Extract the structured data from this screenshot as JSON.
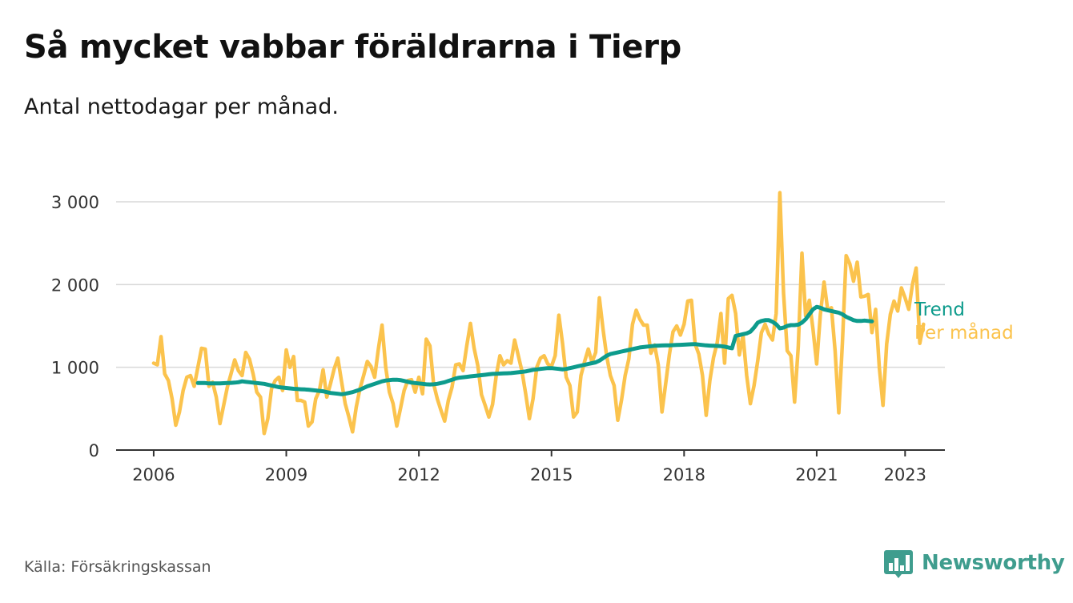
{
  "header": {
    "title": "Så mycket vabbar föräldrarna i Tierp",
    "subtitle": "Antal nettodagar per månad."
  },
  "footer": {
    "source": "Källa: Försäkringskassan",
    "brand": "Newsworthy"
  },
  "colors": {
    "trend": "#0d9b8c",
    "monthly": "#fbc34d",
    "grid": "#d9d9d9",
    "axis": "#333333",
    "brand": "#3f9d8e"
  },
  "icons": {
    "brand_logo": "bar-chart-speech-icon"
  },
  "chart_data": {
    "type": "line",
    "title": "Så mycket vabbar föräldrarna i Tierp",
    "subtitle": "Antal nettodagar per månad.",
    "xlabel": "",
    "ylabel": "",
    "xlim": [
      2005.15,
      2023.9
    ],
    "ylim": [
      0,
      3100
    ],
    "grid": true,
    "xticks": [
      2006,
      2009,
      2012,
      2015,
      2018,
      2021,
      2023
    ],
    "xtick_labels": [
      "2006",
      "2009",
      "2012",
      "2015",
      "2018",
      "2021",
      "2023"
    ],
    "yticks": [
      0,
      1000,
      2000,
      3000
    ],
    "ytick_labels": [
      "0",
      "1 000",
      "2 000",
      "3 000"
    ],
    "x_start": 2006.0,
    "x_step": 0.0833333,
    "series": [
      {
        "name": "Per månad",
        "label": "Per månad",
        "color": "#fbc34d",
        "start_index": 0,
        "values": [
          1050,
          1030,
          1370,
          920,
          840,
          620,
          300,
          460,
          720,
          880,
          900,
          770,
          1000,
          1230,
          1220,
          770,
          820,
          640,
          320,
          540,
          760,
          920,
          1090,
          960,
          900,
          1180,
          1100,
          920,
          700,
          640,
          200,
          380,
          740,
          840,
          880,
          720,
          1210,
          1000,
          1130,
          600,
          600,
          580,
          290,
          340,
          620,
          720,
          970,
          640,
          800,
          980,
          1110,
          830,
          560,
          400,
          220,
          520,
          740,
          900,
          1070,
          1010,
          880,
          1220,
          1510,
          1000,
          700,
          560,
          290,
          500,
          720,
          840,
          850,
          700,
          880,
          680,
          1340,
          1260,
          800,
          620,
          480,
          350,
          600,
          760,
          1030,
          1040,
          960,
          1260,
          1530,
          1230,
          1020,
          670,
          540,
          400,
          550,
          900,
          1140,
          1030,
          1080,
          1050,
          1330,
          1140,
          950,
          680,
          380,
          620,
          1000,
          1110,
          1140,
          1040,
          1010,
          1140,
          1630,
          1290,
          880,
          780,
          400,
          460,
          900,
          1070,
          1220,
          1060,
          1180,
          1840,
          1460,
          1130,
          900,
          780,
          360,
          600,
          900,
          1100,
          1520,
          1690,
          1580,
          1510,
          1510,
          1170,
          1270,
          1030,
          460,
          800,
          1150,
          1430,
          1500,
          1390,
          1520,
          1800,
          1810,
          1280,
          1160,
          900,
          420,
          840,
          1120,
          1300,
          1650,
          1050,
          1830,
          1870,
          1650,
          1150,
          1390,
          900,
          560,
          780,
          1080,
          1420,
          1520,
          1400,
          1330,
          1650,
          3110,
          1900,
          1200,
          1140,
          580,
          1250,
          2380,
          1620,
          1810,
          1460,
          1040,
          1640,
          2030,
          1690,
          1720,
          1200,
          450,
          1310,
          2350,
          2250,
          2040,
          2270,
          1850,
          1860,
          1880,
          1420,
          1700,
          1000,
          540,
          1280,
          1640,
          1800,
          1680,
          1960,
          1840,
          1700,
          2000,
          2200,
          1290,
          1520
        ]
      },
      {
        "name": "Trend",
        "label": "Trend",
        "color": "#0d9b8c",
        "start_index": 12,
        "values": [
          810,
          810,
          810,
          805,
          805,
          805,
          805,
          808,
          810,
          812,
          815,
          820,
          830,
          825,
          820,
          815,
          810,
          805,
          800,
          790,
          780,
          770,
          760,
          755,
          750,
          745,
          740,
          737,
          735,
          733,
          730,
          725,
          720,
          715,
          710,
          700,
          690,
          685,
          680,
          675,
          680,
          690,
          700,
          715,
          730,
          750,
          770,
          785,
          800,
          815,
          830,
          840,
          845,
          850,
          850,
          845,
          835,
          825,
          815,
          810,
          805,
          800,
          795,
          793,
          795,
          800,
          810,
          820,
          835,
          850,
          865,
          875,
          880,
          885,
          890,
          895,
          900,
          905,
          910,
          915,
          920,
          922,
          924,
          926,
          928,
          930,
          935,
          940,
          945,
          950,
          960,
          970,
          975,
          980,
          985,
          990,
          990,
          985,
          980,
          975,
          980,
          990,
          1000,
          1010,
          1020,
          1030,
          1040,
          1050,
          1060,
          1080,
          1110,
          1140,
          1160,
          1170,
          1180,
          1190,
          1200,
          1210,
          1220,
          1230,
          1240,
          1245,
          1250,
          1255,
          1260,
          1262,
          1264,
          1265,
          1266,
          1268,
          1270,
          1272,
          1274,
          1276,
          1278,
          1280,
          1275,
          1270,
          1265,
          1262,
          1260,
          1258,
          1255,
          1250,
          1240,
          1230,
          1380,
          1390,
          1400,
          1410,
          1430,
          1480,
          1540,
          1560,
          1570,
          1570,
          1550,
          1520,
          1470,
          1480,
          1500,
          1510,
          1510,
          1515,
          1540,
          1580,
          1640,
          1700,
          1730,
          1720,
          1700,
          1690,
          1680,
          1670,
          1660,
          1640,
          1610,
          1590,
          1570,
          1560,
          1560,
          1565,
          1560,
          1555
        ]
      }
    ]
  }
}
